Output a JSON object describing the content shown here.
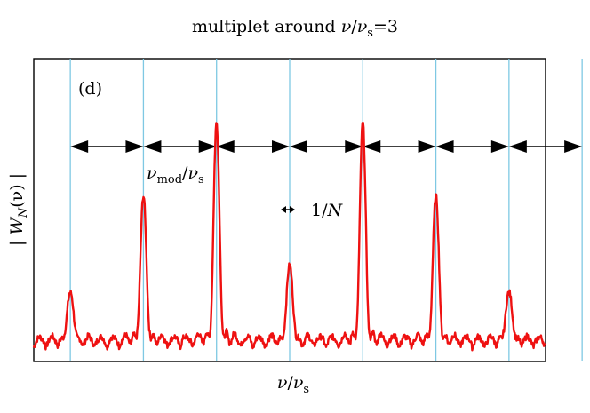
{
  "chart_data": {
    "type": "line",
    "title": {
      "prefix": "multiplet around ",
      "nu": "ν",
      "slash": "/",
      "nu_s": "ν",
      "sub_s": "s",
      "suffix": "=3"
    },
    "panel_label": "(d)",
    "xlabel": {
      "nu": "ν",
      "slash": "/",
      "nu_s": "ν",
      "sub_s": "s"
    },
    "ylabel": {
      "bar_left": "| ",
      "W": "W",
      "sub": "N",
      "arg": "(ν)",
      "bar_right": " |"
    },
    "annotations": {
      "spacing": {
        "nu": "ν",
        "sub_mod": "mod",
        "slash": "/",
        "nu_s": "ν",
        "sub_s": "s"
      },
      "width": {
        "one_over": "1/",
        "N": "N"
      }
    },
    "xlim": [
      -4.5,
      2.5
    ],
    "ylim": [
      0,
      1.0
    ],
    "grid": false,
    "ticks": false,
    "sidebands": [
      -4,
      -3,
      -2,
      -1,
      0,
      1,
      2,
      3
    ],
    "peaks": [
      {
        "x": -4,
        "y": 0.18
      },
      {
        "x": -3,
        "y": 0.5
      },
      {
        "x": -2,
        "y": 0.74
      },
      {
        "x": -1,
        "y": 0.27
      },
      {
        "x": 0,
        "y": 0.74
      },
      {
        "x": 1,
        "y": 0.5
      },
      {
        "x": 2,
        "y": 0.18
      }
    ],
    "peak_width": 0.1,
    "series_color": "#ee1111",
    "guide_color": "#7ec8e3",
    "arrow_color": "#000000"
  }
}
